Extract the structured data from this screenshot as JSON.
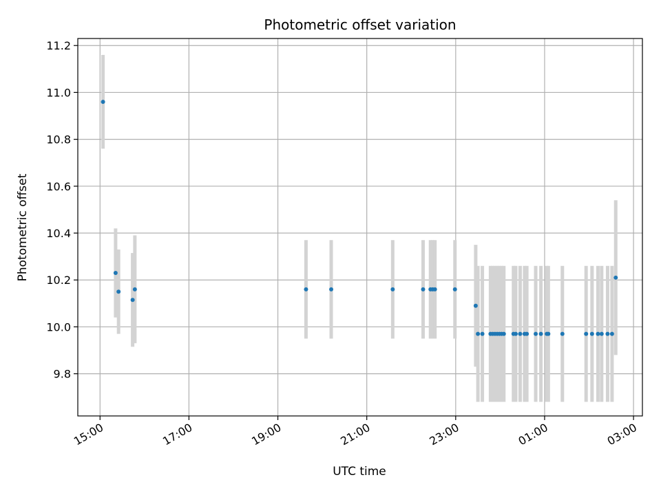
{
  "chart_data": {
    "type": "scatter",
    "title": "Photometric offset variation",
    "xlabel": "UTC time",
    "ylabel": "Photometric offset",
    "x_is_time": true,
    "x_day_offset_note": "times after 00:00 belong to next day",
    "xlim_hours": [
      14.5,
      27.2
    ],
    "ylim": [
      9.62,
      11.23
    ],
    "x_ticks": [
      {
        "hour": 15,
        "label": "15:00"
      },
      {
        "hour": 17,
        "label": "17:00"
      },
      {
        "hour": 19,
        "label": "19:00"
      },
      {
        "hour": 21,
        "label": "21:00"
      },
      {
        "hour": 23,
        "label": "23:00"
      },
      {
        "hour": 25,
        "label": "01:00"
      },
      {
        "hour": 27,
        "label": "03:00"
      }
    ],
    "y_ticks": [
      {
        "value": 9.8,
        "label": "9.8"
      },
      {
        "value": 10.0,
        "label": "10.0"
      },
      {
        "value": 10.2,
        "label": "10.2"
      },
      {
        "value": 10.4,
        "label": "10.4"
      },
      {
        "value": 10.6,
        "label": "10.6"
      },
      {
        "value": 10.8,
        "label": "10.8"
      },
      {
        "value": 11.0,
        "label": "11.0"
      },
      {
        "value": 11.2,
        "label": "11.2"
      }
    ],
    "grid": true,
    "colors": {
      "point": "#1f77b4",
      "errorbar": "#d3d3d3",
      "grid": "#b0b0b0"
    },
    "points": [
      {
        "time": "15:04",
        "y": 10.96,
        "err": 0.2
      },
      {
        "time": "15:21",
        "y": 10.23,
        "err": 0.19
      },
      {
        "time": "15:25",
        "y": 10.15,
        "err": 0.18
      },
      {
        "time": "15:44",
        "y": 10.115,
        "err": 0.2
      },
      {
        "time": "15:47",
        "y": 10.16,
        "err": 0.23
      },
      {
        "time": "19:38",
        "y": 10.16,
        "err": 0.21
      },
      {
        "time": "20:12",
        "y": 10.16,
        "err": 0.21
      },
      {
        "time": "21:35",
        "y": 10.16,
        "err": 0.21
      },
      {
        "time": "22:16",
        "y": 10.16,
        "err": 0.21
      },
      {
        "time": "22:26",
        "y": 10.16,
        "err": 0.21
      },
      {
        "time": "22:29",
        "y": 10.16,
        "err": 0.21
      },
      {
        "time": "22:32",
        "y": 10.16,
        "err": 0.21
      },
      {
        "time": "22:59",
        "y": 10.16,
        "err": 0.21
      },
      {
        "time": "23:27",
        "y": 10.09,
        "err": 0.26
      },
      {
        "time": "23:30",
        "y": 9.97,
        "err": 0.29
      },
      {
        "time": "23:36",
        "y": 9.97,
        "err": 0.29
      },
      {
        "time": "23:47",
        "y": 9.97,
        "err": 0.29
      },
      {
        "time": "23:50",
        "y": 9.97,
        "err": 0.29
      },
      {
        "time": "23:53",
        "y": 9.97,
        "err": 0.29
      },
      {
        "time": "23:56",
        "y": 9.97,
        "err": 0.29
      },
      {
        "time": "23:59",
        "y": 9.97,
        "err": 0.29
      },
      {
        "time": "00:02",
        "y": 9.97,
        "err": 0.29
      },
      {
        "time": "00:05",
        "y": 9.97,
        "err": 0.29
      },
      {
        "time": "00:18",
        "y": 9.97,
        "err": 0.29
      },
      {
        "time": "00:21",
        "y": 9.97,
        "err": 0.29
      },
      {
        "time": "00:27",
        "y": 9.97,
        "err": 0.29
      },
      {
        "time": "00:33",
        "y": 9.97,
        "err": 0.29
      },
      {
        "time": "00:36",
        "y": 9.97,
        "err": 0.29
      },
      {
        "time": "00:48",
        "y": 9.97,
        "err": 0.29
      },
      {
        "time": "00:55",
        "y": 9.97,
        "err": 0.29
      },
      {
        "time": "01:03",
        "y": 9.97,
        "err": 0.29
      },
      {
        "time": "01:05",
        "y": 9.97,
        "err": 0.29
      },
      {
        "time": "01:24",
        "y": 9.97,
        "err": 0.29
      },
      {
        "time": "01:56",
        "y": 9.97,
        "err": 0.29
      },
      {
        "time": "02:04",
        "y": 9.97,
        "err": 0.29
      },
      {
        "time": "02:12",
        "y": 9.97,
        "err": 0.29
      },
      {
        "time": "02:17",
        "y": 9.97,
        "err": 0.29
      },
      {
        "time": "02:25",
        "y": 9.97,
        "err": 0.29
      },
      {
        "time": "02:31",
        "y": 9.97,
        "err": 0.29
      },
      {
        "time": "02:36",
        "y": 10.21,
        "err": 0.33
      }
    ]
  }
}
